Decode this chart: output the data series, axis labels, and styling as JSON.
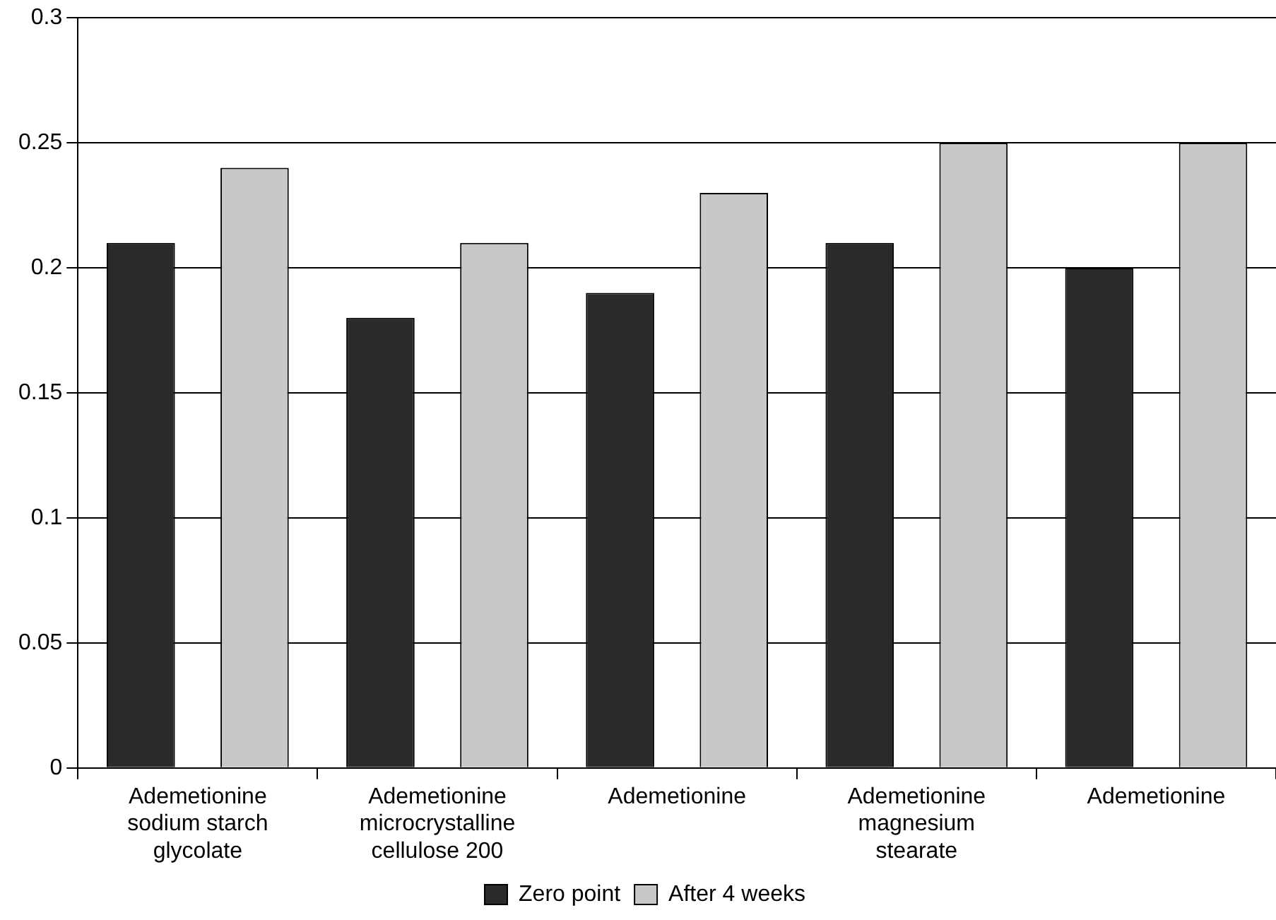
{
  "chart_data": {
    "type": "bar",
    "categories": [
      "Ademetionine sodium starch glycolate",
      "Ademetionine microcrystalline cellulose 200",
      "Ademetionine",
      "Ademetionine magnesium stearate",
      "Ademetionine"
    ],
    "series": [
      {
        "name": "Zero point",
        "color": "#2a2a2a",
        "values": [
          0.21,
          0.18,
          0.19,
          0.21,
          0.2
        ]
      },
      {
        "name": "After 4 weeks",
        "color": "#c8c8c8",
        "values": [
          0.24,
          0.21,
          0.23,
          0.25,
          0.25
        ]
      }
    ],
    "ylim": [
      0,
      0.3
    ],
    "yticks": [
      0,
      0.05,
      0.1,
      0.15,
      0.2,
      0.25,
      0.3
    ],
    "grid": "y",
    "legend": "bottom"
  }
}
